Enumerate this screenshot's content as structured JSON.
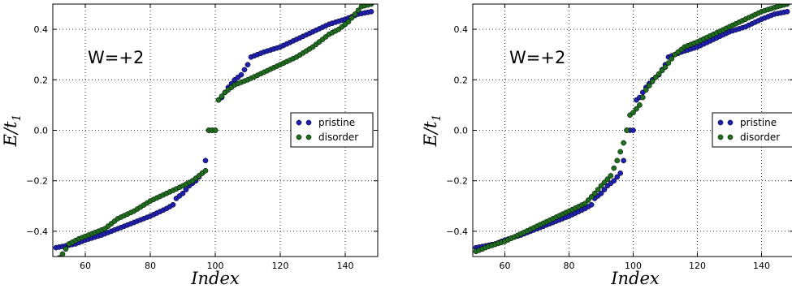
{
  "chart_data": [
    {
      "type": "scatter",
      "annotation": "W=+2",
      "xlabel": "Index",
      "ylabel": "E/t",
      "ylabel_sub": "1",
      "xlim": [
        50,
        150
      ],
      "ylim": [
        -0.5,
        0.5
      ],
      "xticks": [
        60,
        80,
        100,
        120,
        140
      ],
      "xtick_labels": [
        "60",
        "80",
        "100",
        "120",
        "140"
      ],
      "yticks": [
        -0.4,
        -0.2,
        0.0,
        0.2,
        0.4
      ],
      "ytick_labels": [
        "−0.4",
        "−0.2",
        "0.0",
        "0.2",
        "0.4"
      ],
      "grid": true,
      "legend_position": "right",
      "x": {
        "start": 51,
        "end": 148
      },
      "series": [
        {
          "name": "pristine",
          "color": "#1f1fb0",
          "points": [
            [
              51,
              -0.465
            ],
            [
              57,
              -0.45
            ],
            [
              60,
              -0.435
            ],
            [
              65,
              -0.415
            ],
            [
              70,
              -0.39
            ],
            [
              75,
              -0.365
            ],
            [
              80,
              -0.34
            ],
            [
              85,
              -0.31
            ],
            [
              87,
              -0.295
            ],
            [
              88,
              -0.27
            ],
            [
              90,
              -0.25
            ],
            [
              92,
              -0.22
            ],
            [
              94,
              -0.2
            ],
            [
              96,
              -0.17
            ],
            [
              97,
              -0.12
            ],
            [
              98,
              0.0
            ],
            [
              100,
              0.0
            ],
            [
              101,
              0.12
            ],
            [
              102,
              0.13
            ],
            [
              104,
              0.17
            ],
            [
              106,
              0.2
            ],
            [
              108,
              0.22
            ],
            [
              110,
              0.26
            ],
            [
              111,
              0.29
            ],
            [
              115,
              0.31
            ],
            [
              120,
              0.33
            ],
            [
              125,
              0.36
            ],
            [
              130,
              0.39
            ],
            [
              135,
              0.42
            ],
            [
              140,
              0.44
            ],
            [
              144,
              0.46
            ],
            [
              148,
              0.47
            ]
          ]
        },
        {
          "name": "disorder",
          "color": "#1e6e1e",
          "points": [
            [
              51,
              -0.52
            ],
            [
              53,
              -0.49
            ],
            [
              55,
              -0.45
            ],
            [
              58,
              -0.43
            ],
            [
              62,
              -0.41
            ],
            [
              66,
              -0.39
            ],
            [
              70,
              -0.35
            ],
            [
              75,
              -0.32
            ],
            [
              80,
              -0.28
            ],
            [
              85,
              -0.25
            ],
            [
              90,
              -0.22
            ],
            [
              93,
              -0.2
            ],
            [
              96,
              -0.17
            ],
            [
              97,
              -0.16
            ],
            [
              98,
              0.0
            ],
            [
              100,
              0.0
            ],
            [
              101,
              0.12
            ],
            [
              103,
              0.15
            ],
            [
              106,
              0.18
            ],
            [
              110,
              0.2
            ],
            [
              115,
              0.23
            ],
            [
              120,
              0.26
            ],
            [
              125,
              0.29
            ],
            [
              130,
              0.33
            ],
            [
              135,
              0.38
            ],
            [
              138,
              0.4
            ],
            [
              141,
              0.43
            ],
            [
              143,
              0.46
            ],
            [
              145,
              0.49
            ],
            [
              148,
              0.5
            ]
          ]
        }
      ]
    },
    {
      "type": "scatter",
      "annotation": "W=+2",
      "xlabel": "Index",
      "ylabel": "E/t",
      "ylabel_sub": "1",
      "xlim": [
        50,
        150
      ],
      "ylim": [
        -0.5,
        0.5
      ],
      "xticks": [
        60,
        80,
        100,
        120,
        140
      ],
      "xtick_labels": [
        "60",
        "80",
        "100",
        "120",
        "140"
      ],
      "yticks": [
        -0.4,
        -0.2,
        0.0,
        0.2,
        0.4
      ],
      "ytick_labels": [
        "−0.4",
        "−0.2",
        "0.0",
        "0.2",
        "0.4"
      ],
      "grid": true,
      "legend_position": "right",
      "x": {
        "start": 51,
        "end": 148
      },
      "series": [
        {
          "name": "pristine",
          "color": "#1f1fb0",
          "points": [
            [
              51,
              -0.465
            ],
            [
              57,
              -0.45
            ],
            [
              60,
              -0.435
            ],
            [
              65,
              -0.415
            ],
            [
              70,
              -0.39
            ],
            [
              75,
              -0.365
            ],
            [
              80,
              -0.34
            ],
            [
              85,
              -0.31
            ],
            [
              87,
              -0.295
            ],
            [
              88,
              -0.27
            ],
            [
              90,
              -0.25
            ],
            [
              92,
              -0.22
            ],
            [
              94,
              -0.2
            ],
            [
              96,
              -0.17
            ],
            [
              97,
              -0.12
            ],
            [
              98,
              0.0
            ],
            [
              100,
              0.0
            ],
            [
              101,
              0.12
            ],
            [
              102,
              0.13
            ],
            [
              104,
              0.17
            ],
            [
              106,
              0.2
            ],
            [
              108,
              0.22
            ],
            [
              110,
              0.26
            ],
            [
              111,
              0.29
            ],
            [
              115,
              0.31
            ],
            [
              120,
              0.33
            ],
            [
              125,
              0.36
            ],
            [
              130,
              0.39
            ],
            [
              135,
              0.41
            ],
            [
              140,
              0.44
            ],
            [
              144,
              0.46
            ],
            [
              148,
              0.47
            ]
          ]
        },
        {
          "name": "disorder",
          "color": "#1e6e1e",
          "points": [
            [
              51,
              -0.48
            ],
            [
              55,
              -0.46
            ],
            [
              60,
              -0.44
            ],
            [
              65,
              -0.41
            ],
            [
              70,
              -0.38
            ],
            [
              75,
              -0.35
            ],
            [
              80,
              -0.32
            ],
            [
              85,
              -0.29
            ],
            [
              88,
              -0.25
            ],
            [
              90,
              -0.22
            ],
            [
              93,
              -0.18
            ],
            [
              95,
              -0.12
            ],
            [
              97,
              -0.05
            ],
            [
              98,
              0.0
            ],
            [
              99,
              0.06
            ],
            [
              100,
              0.07
            ],
            [
              102,
              0.1
            ],
            [
              104,
              0.16
            ],
            [
              107,
              0.21
            ],
            [
              110,
              0.25
            ],
            [
              113,
              0.3
            ],
            [
              116,
              0.33
            ],
            [
              120,
              0.35
            ],
            [
              125,
              0.38
            ],
            [
              130,
              0.41
            ],
            [
              135,
              0.44
            ],
            [
              140,
              0.47
            ],
            [
              145,
              0.49
            ],
            [
              148,
              0.5
            ]
          ]
        }
      ]
    }
  ]
}
